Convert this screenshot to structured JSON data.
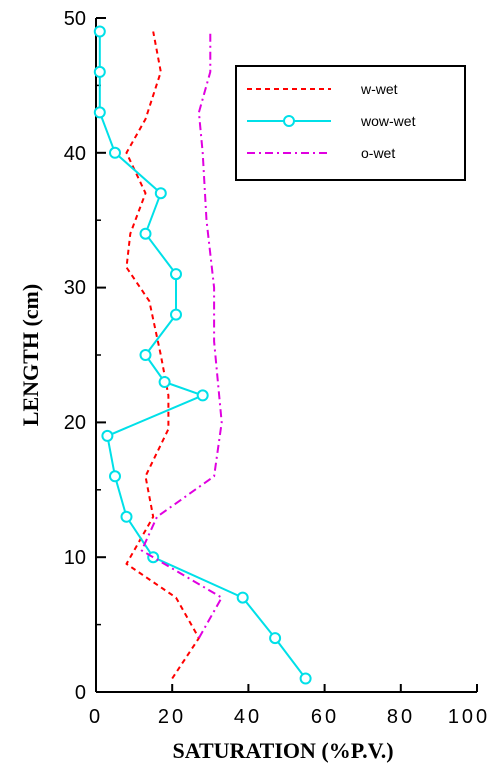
{
  "chart_data": {
    "type": "line",
    "title": "",
    "xlabel": "SATURATION (%P.V.)",
    "ylabel": "LENGTH (cm)",
    "xlim": [
      0,
      100
    ],
    "ylim": [
      0,
      50
    ],
    "xticks": [
      0,
      20,
      40,
      60,
      80,
      100
    ],
    "xtick_labels": [
      "0",
      "20",
      "40",
      "60",
      "80",
      "100"
    ],
    "yticks": [
      0,
      10,
      20,
      30,
      40,
      50
    ],
    "ytick_labels": [
      "0",
      "10",
      "20",
      "30",
      "40",
      "50"
    ],
    "grid": false,
    "legend_position": "top-right",
    "series": [
      {
        "name": "w-wet",
        "color": "#ff0000",
        "style": "dashed",
        "marker": "none",
        "points": [
          [
            20,
            1
          ],
          [
            27,
            4
          ],
          [
            21,
            7
          ],
          [
            8,
            9.5
          ],
          [
            15,
            13
          ],
          [
            13,
            16
          ],
          [
            19,
            19.5
          ],
          [
            19,
            22
          ],
          [
            17,
            25
          ],
          [
            14,
            29
          ],
          [
            8,
            31.5
          ],
          [
            9,
            34
          ],
          [
            13,
            37
          ],
          [
            8,
            40
          ],
          [
            13,
            42.5
          ],
          [
            17,
            46
          ],
          [
            15,
            49
          ]
        ]
      },
      {
        "name": "wow-wet",
        "color": "#00e0e8",
        "style": "solid",
        "marker": "circle",
        "points": [
          [
            55,
            1
          ],
          [
            47,
            4
          ],
          [
            38.5,
            7
          ],
          [
            15,
            10
          ],
          [
            8,
            13
          ],
          [
            5,
            16
          ],
          [
            3,
            19
          ],
          [
            28,
            22
          ],
          [
            18,
            23
          ],
          [
            13,
            25
          ],
          [
            21,
            28
          ],
          [
            21,
            31
          ],
          [
            13,
            34
          ],
          [
            17,
            37
          ],
          [
            5,
            40
          ],
          [
            1,
            43
          ],
          [
            1,
            46
          ],
          [
            1,
            49
          ]
        ]
      },
      {
        "name": "o-wet",
        "color": "#e000e0",
        "style": "dashdot",
        "marker": "none",
        "points": [
          [
            27,
            4
          ],
          [
            33,
            7
          ],
          [
            12,
            10.5
          ],
          [
            16,
            13
          ],
          [
            31,
            16
          ],
          [
            33,
            20
          ],
          [
            32,
            23
          ],
          [
            31,
            26
          ],
          [
            31,
            30
          ],
          [
            29,
            35
          ],
          [
            28,
            40
          ],
          [
            27,
            43
          ],
          [
            30,
            46
          ],
          [
            30,
            49
          ]
        ]
      }
    ]
  }
}
